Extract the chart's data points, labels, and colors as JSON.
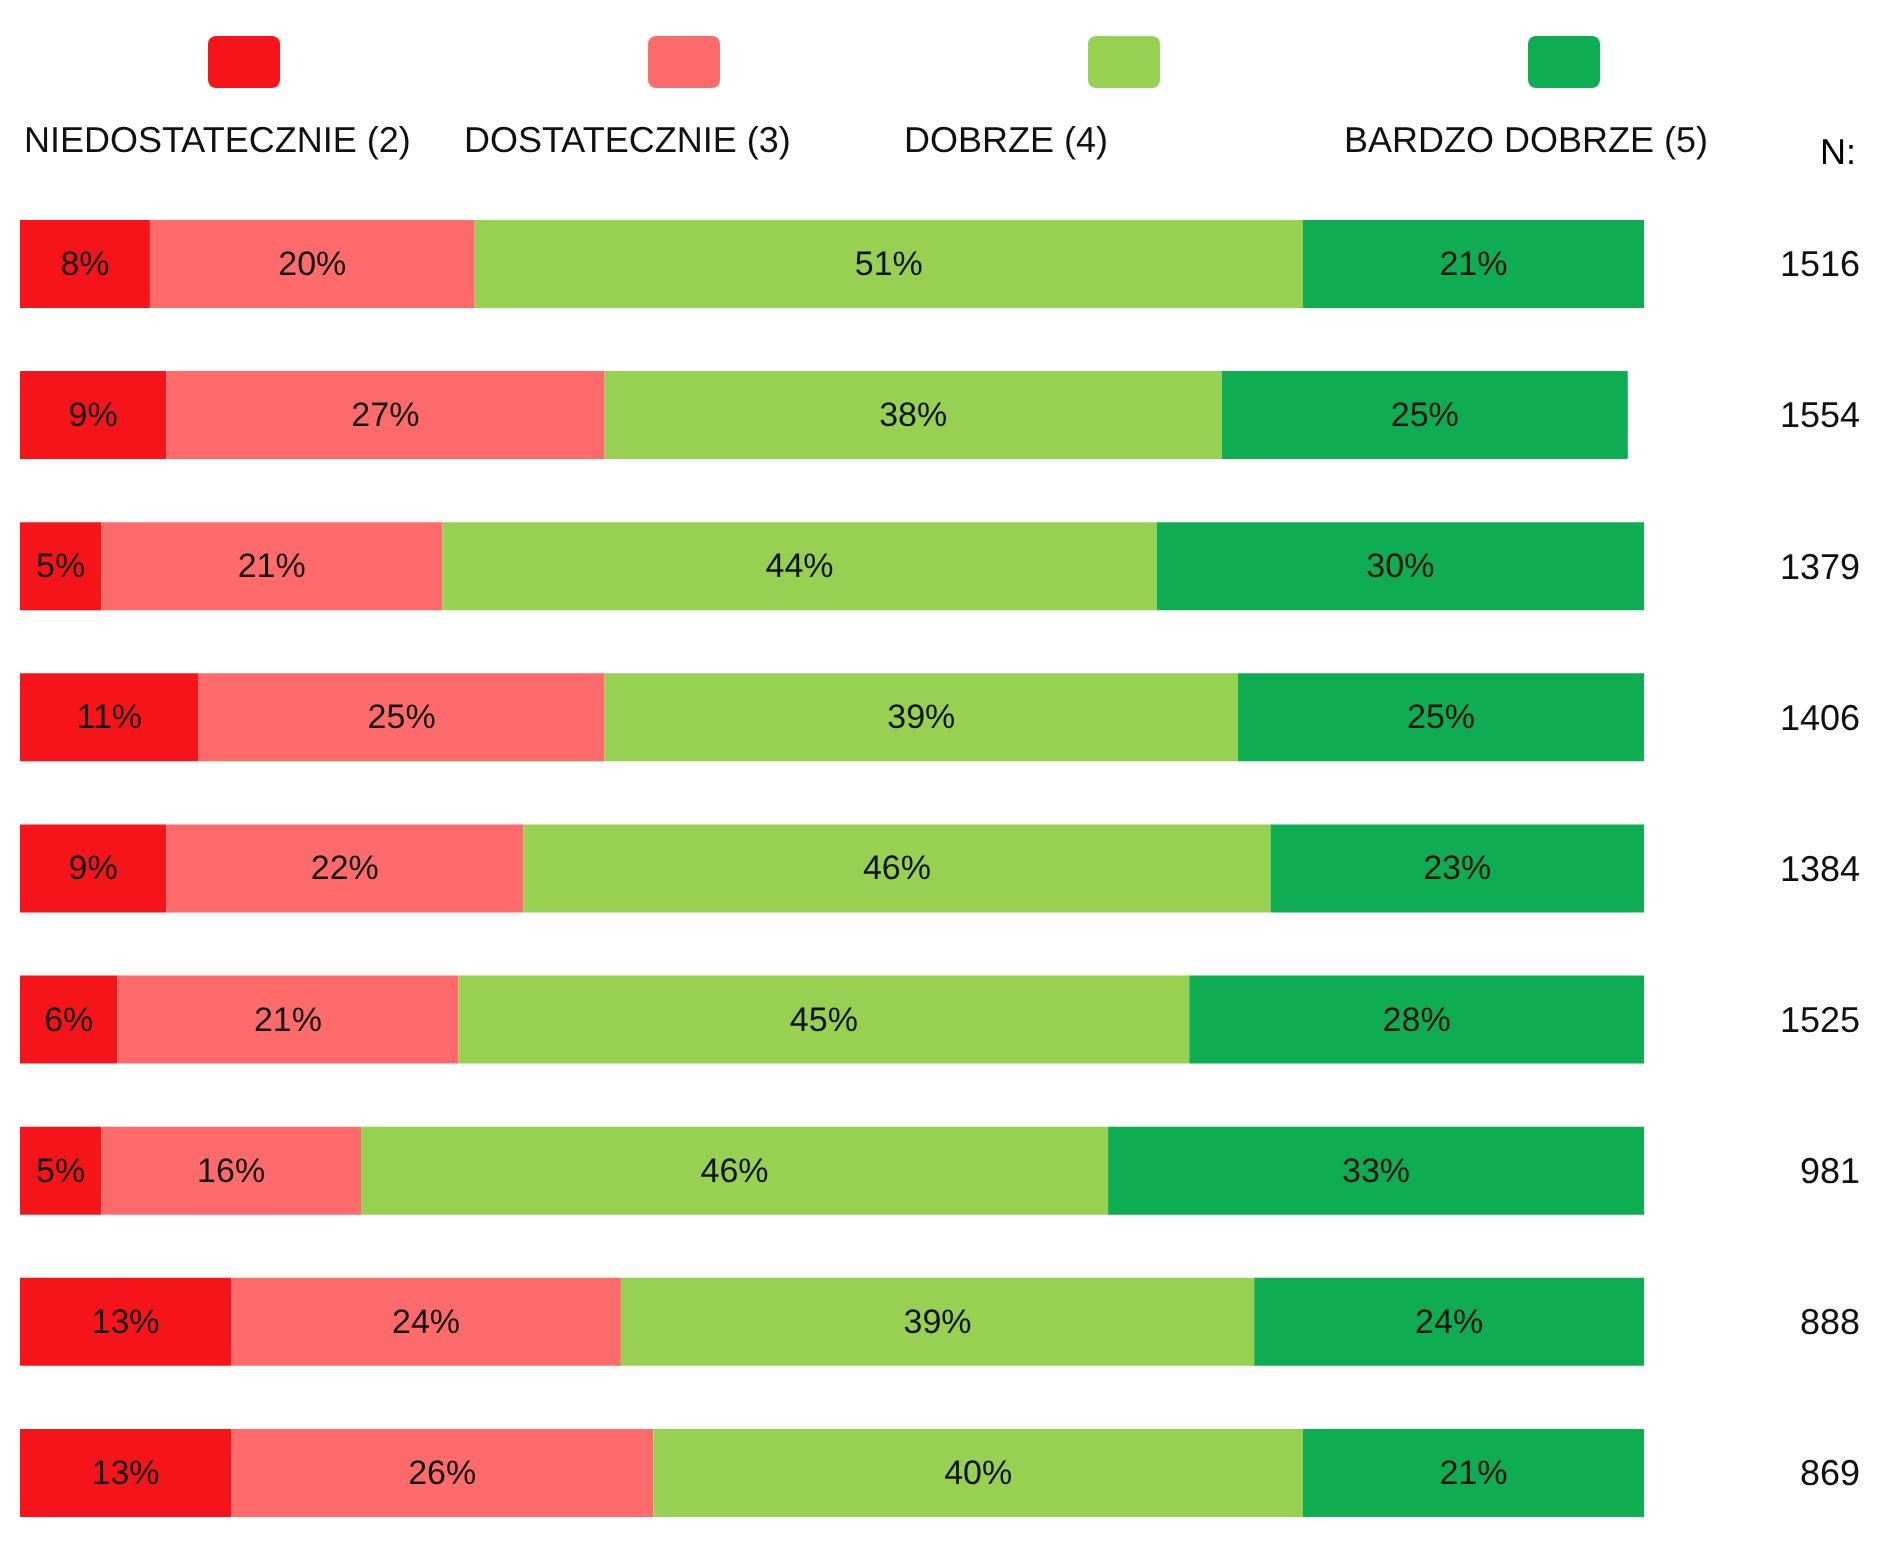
{
  "chart_data": {
    "type": "bar",
    "orientation": "horizontal",
    "stacked": true,
    "legend": "top",
    "categories": [
      null,
      null,
      null,
      null,
      null,
      null,
      null,
      null,
      null
    ],
    "series": [
      {
        "name": "NIEDOSTATECZNIE (2)",
        "color": "#f5141a",
        "values": [
          8,
          9,
          5,
          11,
          9,
          6,
          5,
          13,
          13
        ],
        "value_labels": [
          "8%",
          "9%",
          "5%",
          "11%",
          "9%",
          "6%",
          "5%",
          "13%",
          "13%"
        ]
      },
      {
        "name": "DOSTATECZNIE (3)",
        "color": "#ff6b6b",
        "values": [
          20,
          27,
          21,
          25,
          22,
          21,
          16,
          24,
          26
        ],
        "value_labels": [
          "20%",
          "27%",
          "21%",
          "25%",
          "22%",
          "21%",
          "16%",
          "24%",
          "26%"
        ]
      },
      {
        "name": "DOBRZE (4)",
        "color": "#97d152",
        "values": [
          51,
          38,
          44,
          39,
          46,
          45,
          46,
          39,
          40
        ],
        "value_labels": [
          "51%",
          "38%",
          "44%",
          "39%",
          "46%",
          "45%",
          "46%",
          "39%",
          "40%"
        ]
      },
      {
        "name": "BARDZO DOBRZE (5)",
        "color": "#0fad52",
        "values": [
          21,
          25,
          30,
          25,
          23,
          28,
          33,
          24,
          21
        ],
        "value_labels": [
          "21%",
          "25%",
          "30%",
          "25%",
          "23%",
          "28%",
          "33%",
          "24%",
          "21%"
        ]
      }
    ],
    "annotations": [
      "N:",
      "1516",
      "1554",
      "1379",
      "1406",
      "1384",
      "1525",
      "981",
      "888",
      "869"
    ]
  }
}
